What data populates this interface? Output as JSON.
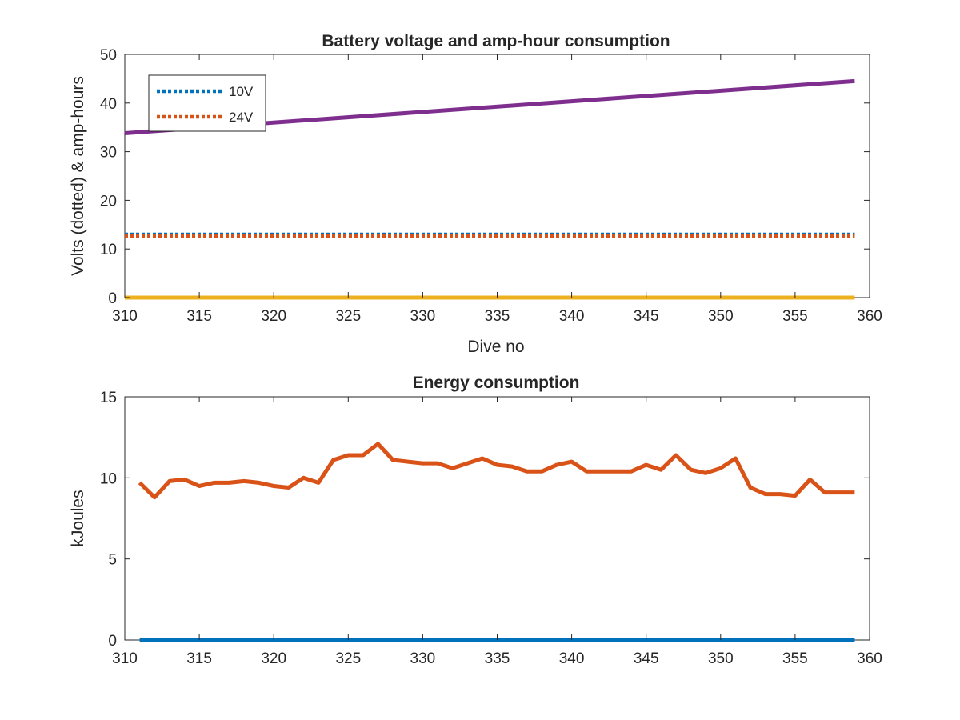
{
  "chart_data": [
    {
      "type": "line",
      "title": "Battery voltage and amp-hour consumption",
      "xlabel": "Dive no",
      "ylabel": "Volts (dotted) & amp-hours",
      "xlim": [
        310,
        360
      ],
      "ylim": [
        0,
        50
      ],
      "xticks": [
        310,
        315,
        320,
        325,
        330,
        335,
        340,
        345,
        350,
        355,
        360
      ],
      "yticks": [
        0,
        10,
        20,
        30,
        40,
        50
      ],
      "legend": {
        "placement": "top-left"
      },
      "series": [
        {
          "name": "10V",
          "style": "dotted",
          "color": "#0072BD",
          "x": [
            310,
            359
          ],
          "y": [
            13.0,
            13.0
          ]
        },
        {
          "name": "24V",
          "style": "dotted",
          "color": "#D95319",
          "x": [
            310,
            359
          ],
          "y": [
            12.7,
            12.7
          ]
        },
        {
          "style": "solid",
          "color": "#7E2F8E",
          "x": [
            310,
            359
          ],
          "y": [
            33.8,
            44.5
          ]
        },
        {
          "style": "solid",
          "color": "#EDB120",
          "x": [
            310,
            359
          ],
          "y": [
            0,
            0
          ]
        }
      ]
    },
    {
      "type": "line",
      "title": "Energy consumption",
      "xlabel": "",
      "ylabel": "kJoules",
      "xlim": [
        310,
        360
      ],
      "ylim": [
        0,
        15
      ],
      "xticks": [
        310,
        315,
        320,
        325,
        330,
        335,
        340,
        345,
        350,
        355,
        360
      ],
      "yticks": [
        0,
        5,
        10,
        15
      ],
      "series": [
        {
          "style": "solid",
          "color": "#0072BD",
          "x": [
            311,
            359
          ],
          "y": [
            0,
            0
          ]
        },
        {
          "style": "solid",
          "color": "#D95319",
          "x": [
            311,
            312,
            313,
            314,
            315,
            316,
            317,
            318,
            319,
            320,
            321,
            322,
            323,
            324,
            325,
            326,
            327,
            328,
            329,
            330,
            331,
            332,
            333,
            334,
            335,
            336,
            337,
            338,
            339,
            340,
            341,
            342,
            343,
            344,
            345,
            346,
            347,
            348,
            349,
            350,
            351,
            352,
            353,
            354,
            355,
            356,
            357,
            358,
            359
          ],
          "y": [
            9.7,
            8.8,
            9.8,
            9.9,
            9.5,
            9.7,
            9.7,
            9.8,
            9.7,
            9.5,
            9.4,
            10.0,
            9.7,
            11.1,
            11.4,
            11.4,
            12.1,
            11.1,
            11.0,
            10.9,
            10.9,
            10.6,
            10.9,
            11.2,
            10.8,
            10.7,
            10.4,
            10.4,
            10.8,
            11.0,
            10.4,
            10.4,
            10.4,
            10.4,
            10.8,
            10.5,
            11.4,
            10.5,
            10.3,
            10.6,
            11.2,
            9.4,
            9.0,
            9.0,
            8.9,
            9.9,
            9.1,
            9.1,
            9.1
          ]
        }
      ]
    }
  ]
}
